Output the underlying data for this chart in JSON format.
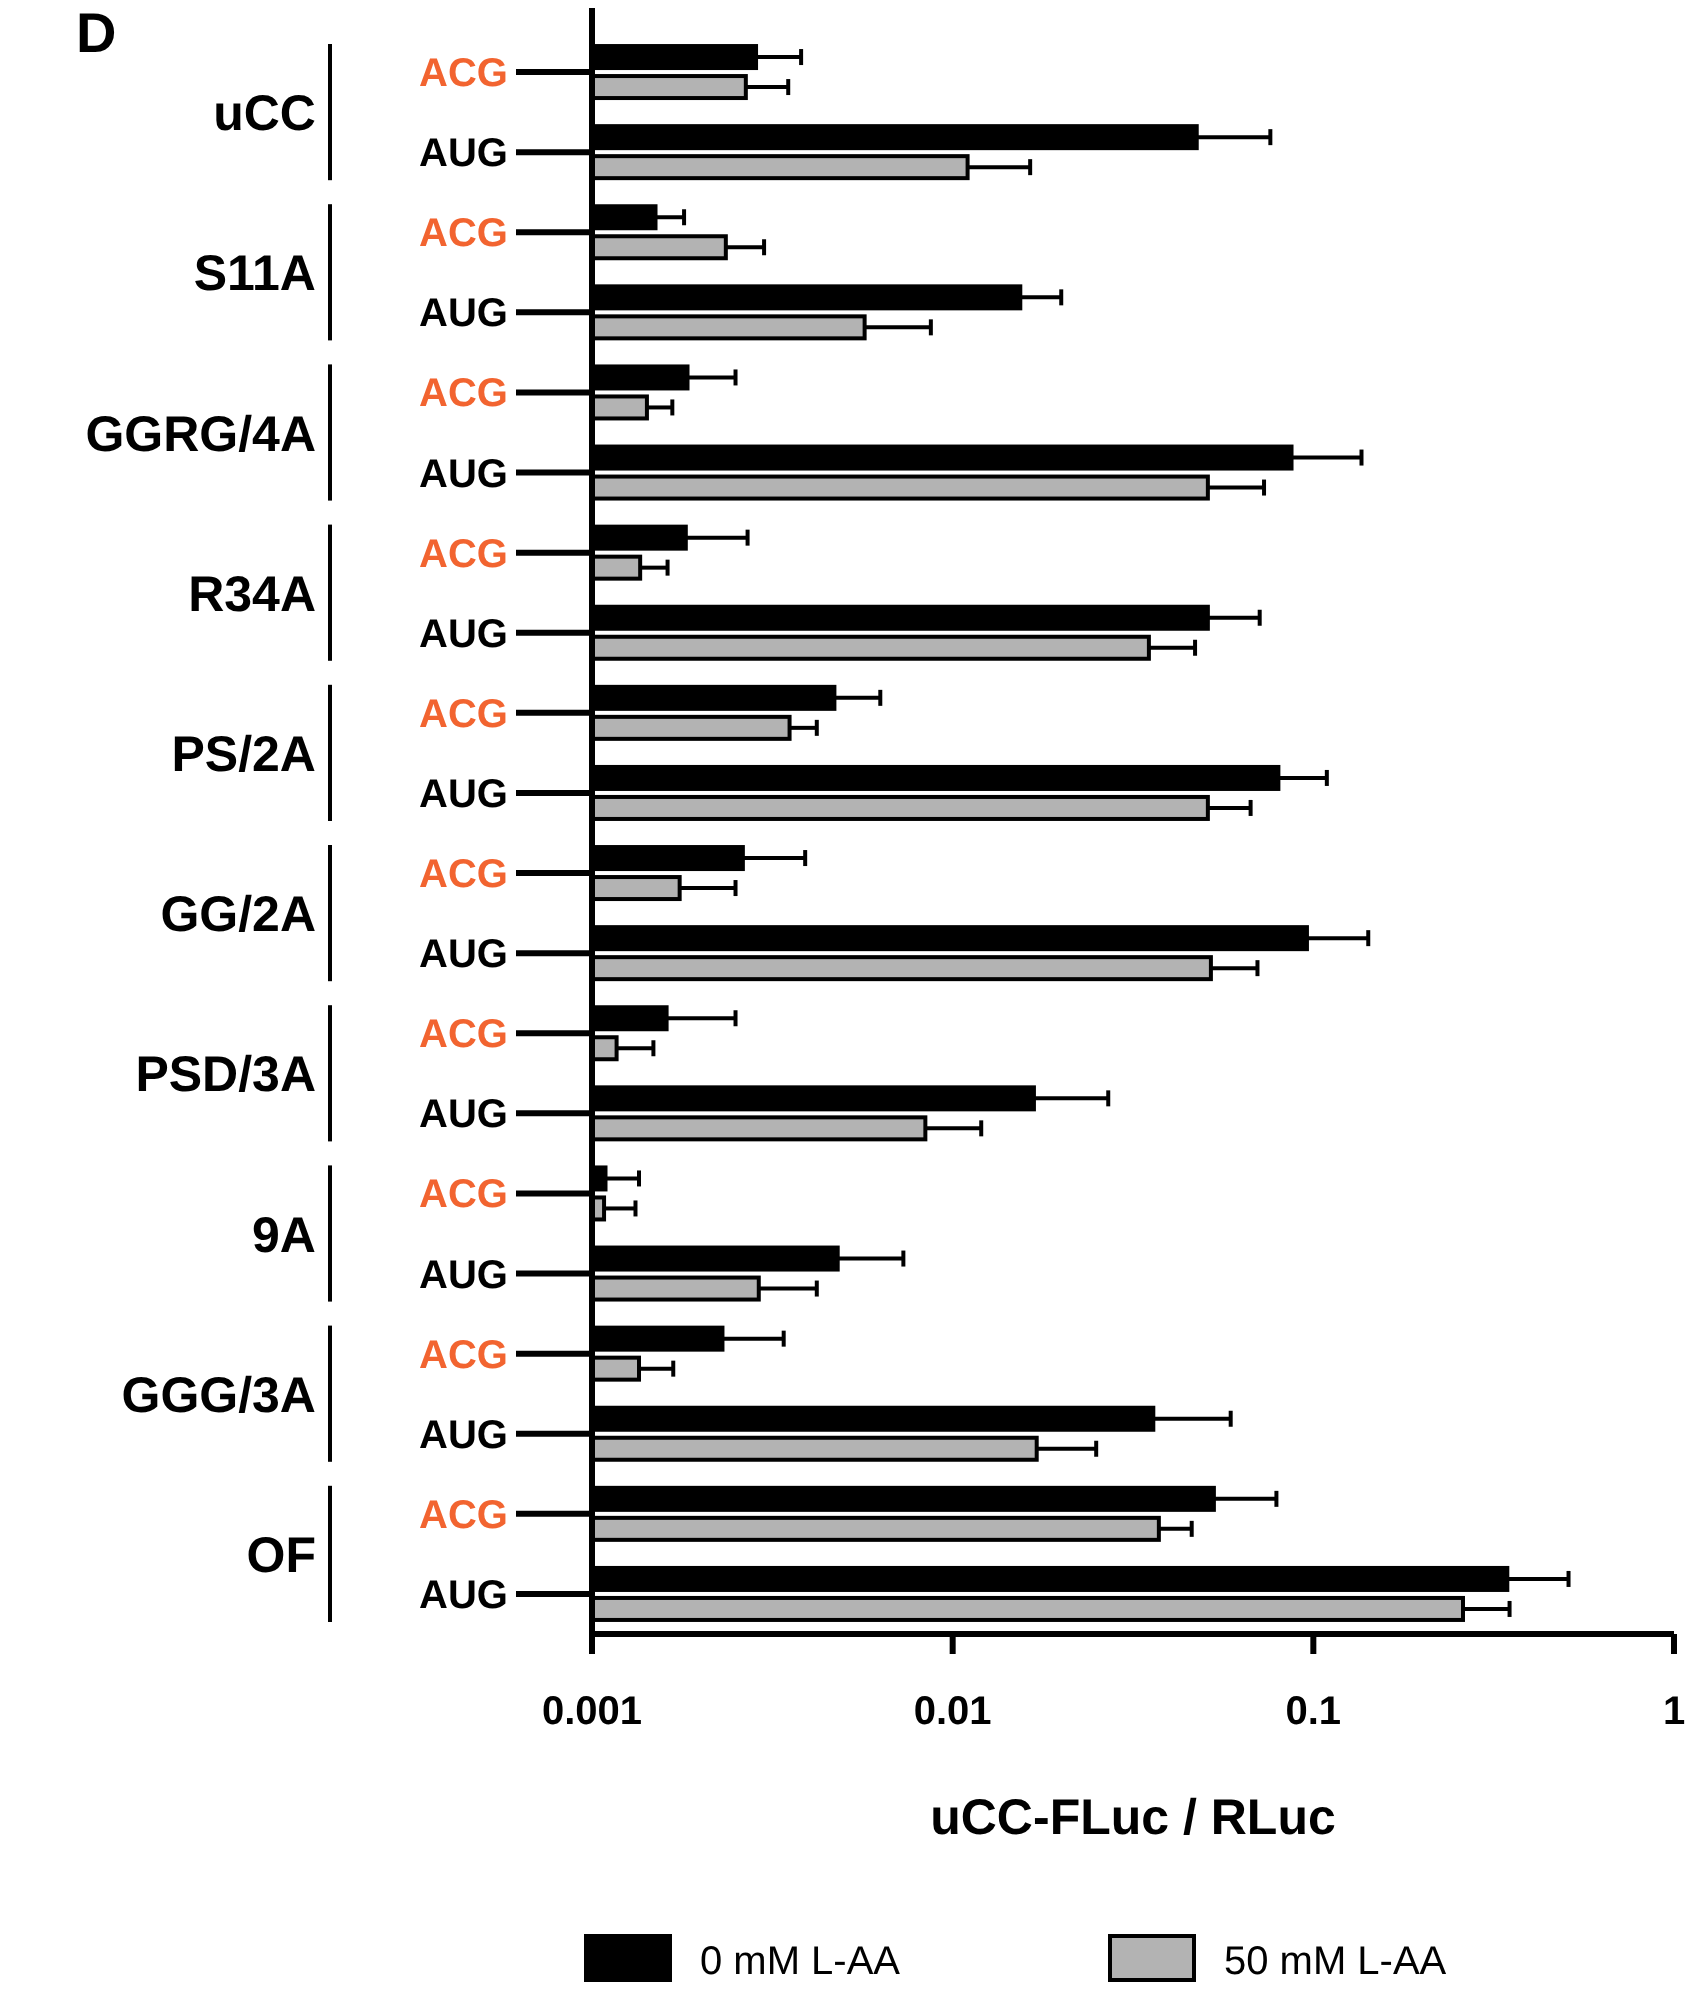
{
  "chart_data": {
    "type": "bar",
    "orientation": "horizontal",
    "title": "D",
    "xlabel": "uCC-FLuc / RLuc",
    "categories": [
      "ACG",
      "AUG",
      "ACG",
      "AUG",
      "ACG",
      "AUG",
      "ACG",
      "AUG",
      "ACG",
      "AUG",
      "ACG",
      "AUG",
      "ACG",
      "AUG",
      "ACG",
      "AUG",
      "ACG",
      "AUG",
      "ACG",
      "AUG"
    ],
    "annotations": [
      "uCC",
      "S11A",
      "GGRG/4A",
      "R34A",
      "PS/2A",
      "GG/2A",
      "PSD/3A",
      "9A",
      "GGG/3A",
      "OF"
    ],
    "series": [
      {
        "name": "0 mM L-AA",
        "color": "#000000",
        "values": [
          0.00285,
          0.0475,
          0.0015,
          0.0154,
          0.00184,
          0.087,
          0.00182,
          0.051,
          0.0047,
          0.08,
          0.00262,
          0.096,
          0.00161,
          0.0168,
          0.00109,
          0.0048,
          0.0023,
          0.036,
          0.053,
          0.345
        ],
        "errors": [
          [
            0.00285,
            0.0038
          ],
          [
            0.0475,
            0.076
          ],
          [
            0.0015,
            0.0018
          ],
          [
            0.0154,
            0.02
          ],
          [
            0.00184,
            0.0025
          ],
          [
            0.087,
            0.136
          ],
          [
            0.00182,
            0.0027
          ],
          [
            0.051,
            0.071
          ],
          [
            0.0047,
            0.0063
          ],
          [
            0.08,
            0.109
          ],
          [
            0.00262,
            0.0039
          ],
          [
            0.096,
            0.142
          ],
          [
            0.00161,
            0.0025
          ],
          [
            0.0168,
            0.027
          ],
          [
            0.00109,
            0.00135
          ],
          [
            0.0048,
            0.0073
          ],
          [
            0.0023,
            0.0034
          ],
          [
            0.036,
            0.059
          ],
          [
            0.053,
            0.079
          ],
          [
            0.345,
            0.51
          ]
        ]
      },
      {
        "name": "50 mM L-AA",
        "color": "#b3b3b3",
        "values": [
          0.00267,
          0.011,
          0.00235,
          0.0057,
          0.00142,
          0.051,
          0.00136,
          0.035,
          0.00353,
          0.051,
          0.00175,
          0.052,
          0.00117,
          0.0084,
          0.00108,
          0.0029,
          0.00135,
          0.0171,
          0.0373,
          0.26
        ],
        "errors": [
          [
            0.00267,
            0.0035
          ],
          [
            0.011,
            0.0164
          ],
          [
            0.00235,
            0.003
          ],
          [
            0.0057,
            0.0087
          ],
          [
            0.00142,
            0.00167
          ],
          [
            0.051,
            0.073
          ],
          [
            0.00136,
            0.00162
          ],
          [
            0.035,
            0.047
          ],
          [
            0.00353,
            0.0042
          ],
          [
            0.051,
            0.067
          ],
          [
            0.00175,
            0.0025
          ],
          [
            0.052,
            0.07
          ],
          [
            0.00117,
            0.00148
          ],
          [
            0.0084,
            0.012
          ],
          [
            0.00108,
            0.00132
          ],
          [
            0.0029,
            0.0042
          ],
          [
            0.00135,
            0.00168
          ],
          [
            0.0171,
            0.025
          ],
          [
            0.0373,
            0.046
          ],
          [
            0.26,
            0.35
          ]
        ]
      }
    ],
    "log": "x",
    "xlim": [
      0.001,
      1
    ],
    "xticks": [
      0.001,
      0.01,
      0.1,
      1
    ],
    "grid": false,
    "legend": "bottom"
  }
}
